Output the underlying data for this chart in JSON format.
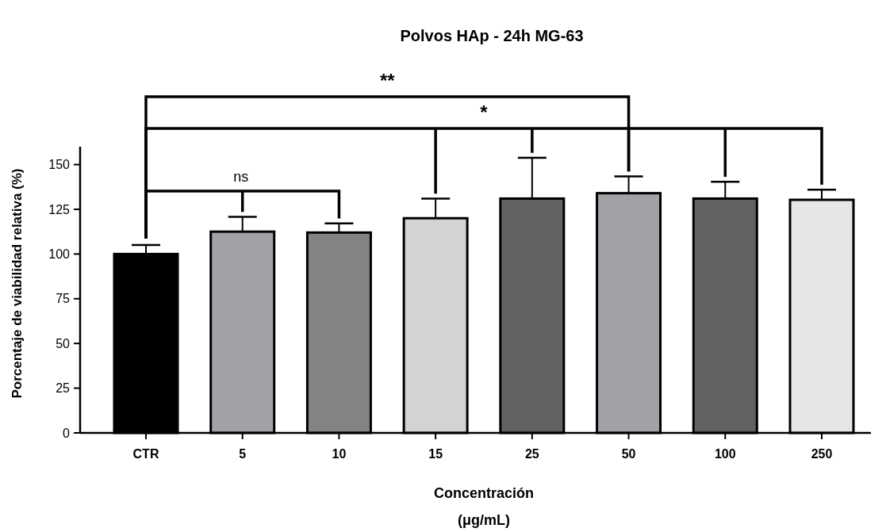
{
  "chart_data": {
    "type": "bar",
    "title": "Polvos HAp - 24h MG-63",
    "xlabel": "Concentración\n(μg/mL)",
    "ylabel": "Porcentaje de viabilidad relativa (%)",
    "categories": [
      "CTR",
      "5",
      "10",
      "15",
      "25",
      "50",
      "100",
      "250"
    ],
    "values": [
      100,
      112.5,
      112,
      120,
      131,
      134,
      131,
      130.3
    ],
    "errors": [
      5,
      8.3,
      5.1,
      11,
      22.8,
      9.4,
      9.4,
      5.7
    ],
    "colors": [
      "#000000",
      "#a2a1a6",
      "#838383",
      "#d3d3d3",
      "#626262",
      "#a2a1a6",
      "#626262",
      "#e6e6e6"
    ],
    "ylim": [
      0,
      160
    ],
    "yticks": [
      0,
      25,
      50,
      75,
      100,
      125,
      150
    ],
    "annotations": [
      "**",
      "*",
      "ns"
    ]
  }
}
